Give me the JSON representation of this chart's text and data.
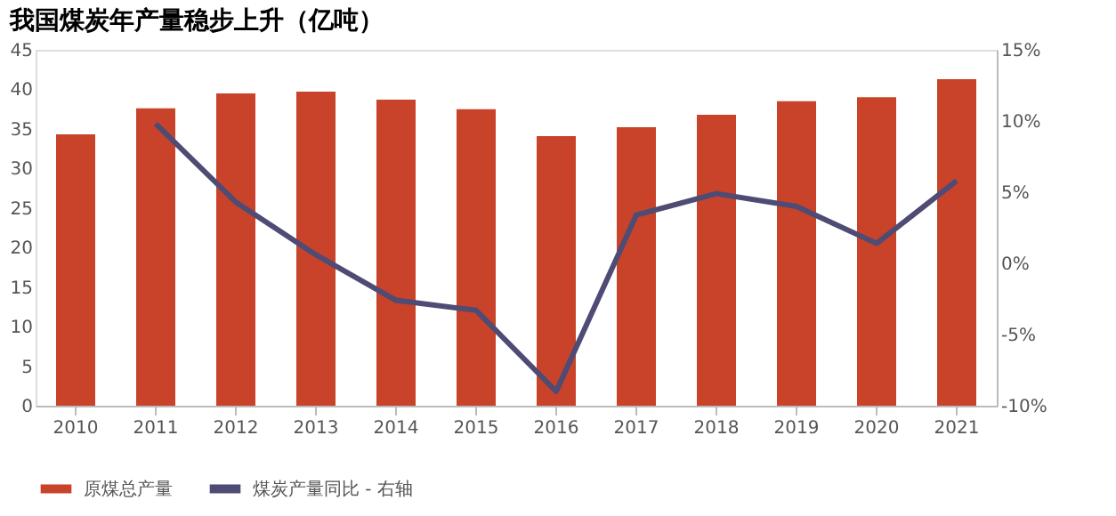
{
  "chart_data": {
    "type": "bar",
    "title": "我国煤炭年产量稳步上升（亿吨）",
    "categories": [
      "2010",
      "2011",
      "2012",
      "2013",
      "2014",
      "2015",
      "2016",
      "2017",
      "2018",
      "2019",
      "2020",
      "2021"
    ],
    "series": [
      {
        "name": "原煤总产量",
        "color": "#c8432a",
        "values": [
          34.3,
          37.6,
          39.5,
          39.7,
          38.7,
          37.5,
          34.1,
          35.2,
          36.8,
          38.5,
          39.0,
          41.3
        ]
      },
      {
        "name": "煤炭产量同比 - 右轴",
        "type": "line",
        "axis": "y2",
        "color": "#4e4b74",
        "values": [
          null,
          9.8,
          4.3,
          0.6,
          -2.6,
          -3.3,
          -9.0,
          3.4,
          4.9,
          4.0,
          1.4,
          5.8
        ]
      }
    ],
    "ylim": [
      0,
      45
    ],
    "yticks": [
      0,
      5,
      10,
      15,
      20,
      25,
      30,
      35,
      40,
      45
    ],
    "y2lim": [
      -10,
      15
    ],
    "y2ticks": [
      {
        "value": -10,
        "label": "-10%"
      },
      {
        "value": -5,
        "label": "-5%"
      },
      {
        "value": 0,
        "label": "0%"
      },
      {
        "value": 5,
        "label": "5%"
      },
      {
        "value": 10,
        "label": "10%"
      },
      {
        "value": 15,
        "label": "15%"
      }
    ],
    "grid": false,
    "legend": "bottom",
    "marker": "none",
    "line_style": "solid"
  }
}
